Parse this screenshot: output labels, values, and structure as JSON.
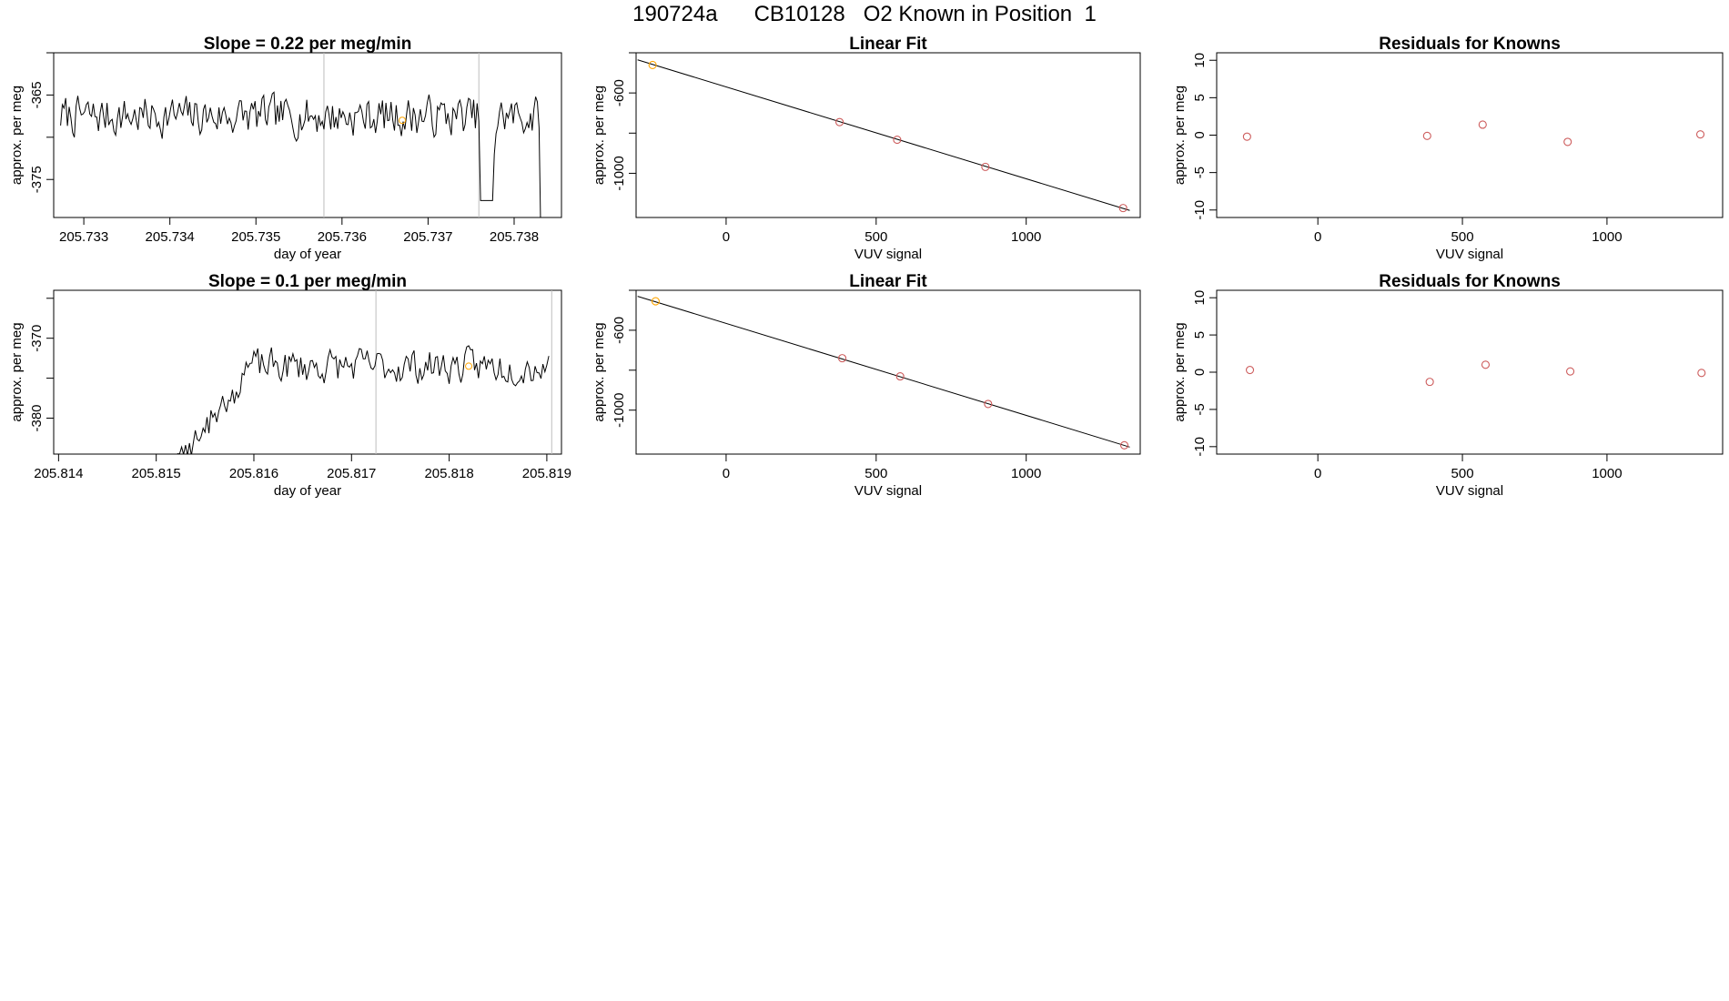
{
  "title": {
    "run": "190724a",
    "cylinder": "CB10128",
    "description": "O2 Known in Position  1"
  },
  "colors": {
    "trace": "#000000",
    "point": "#cd5c5c",
    "highlight": "#ffa500",
    "marker_line": "#bebebe"
  },
  "chart_data": [
    {
      "type": "line",
      "title": "Slope =  0.22  per meg/min",
      "xlabel": "day of year",
      "ylabel": "approx. per meg",
      "xlim": [
        205.73265,
        205.73855
      ],
      "ylim": [
        -379.5,
        -360
      ],
      "xticks": [
        205.733,
        205.734,
        205.735,
        205.736,
        205.737,
        205.738
      ],
      "xtick_labels": [
        "205.733",
        "205.734",
        "205.735",
        "205.736",
        "205.737",
        "205.738"
      ],
      "yticks": [
        -375,
        -370,
        -365,
        -360
      ],
      "ytick_labels": [
        "-375",
        "",
        "-365",
        ""
      ],
      "vlines": [
        205.73579,
        205.73759
      ],
      "highlight_point": {
        "x": 205.7367,
        "y": -368.0
      },
      "series_start": 205.73273,
      "series_end": 205.73836,
      "step": 2e-05,
      "y_mean": -367.5,
      "y_amp": 2.5,
      "seed": 7,
      "dip": {
        "from": 205.73761,
        "to": 205.73776,
        "value": -377.5
      },
      "end_drop": {
        "from": 205.73831,
        "value": -382
      }
    },
    {
      "type": "scatter",
      "title": "Linear Fit",
      "xlabel": "VUV signal",
      "ylabel": "approx. per meg",
      "xlim": [
        -300,
        1380
      ],
      "ylim": [
        -1220,
        -400
      ],
      "xticks": [
        0,
        500,
        1000
      ],
      "xtick_labels": [
        "0",
        "500",
        "1000"
      ],
      "yticks": [
        -1000,
        -800,
        -600,
        -400
      ],
      "ytick_labels": [
        "-1000",
        "",
        "-600",
        ""
      ],
      "fit_line": {
        "x1": -295,
        "y1": -435,
        "x2": 1345,
        "y2": -1185
      },
      "x": [
        -245,
        378,
        570,
        864,
        1323
      ],
      "y": [
        -461,
        -745,
        -833,
        -968,
        -1173
      ],
      "point_colors": [
        "highlight",
        "point",
        "point",
        "point",
        "point"
      ]
    },
    {
      "type": "scatter",
      "title": "Residuals for Knowns",
      "xlabel": "VUV signal",
      "ylabel": "approx. per meg",
      "xlim": [
        -350,
        1400
      ],
      "ylim": [
        -11,
        11
      ],
      "xticks": [
        0,
        500,
        1000
      ],
      "xtick_labels": [
        "0",
        "500",
        "1000"
      ],
      "yticks": [
        -10,
        -5,
        0,
        5,
        10
      ],
      "ytick_labels": [
        "-10",
        "-5",
        "0",
        "5",
        "10"
      ],
      "x": [
        -245,
        378,
        570,
        864,
        1323
      ],
      "y": [
        -0.2,
        -0.1,
        1.4,
        -0.9,
        0.1
      ],
      "point_colors": [
        "point",
        "point",
        "point",
        "point",
        "point"
      ]
    },
    {
      "type": "line",
      "title": "Slope =  0.1  per meg/min",
      "xlabel": "day of year",
      "ylabel": "approx. per meg",
      "xlim": [
        205.81395,
        205.81915
      ],
      "ylim": [
        -384.5,
        -364
      ],
      "xticks": [
        205.814,
        205.815,
        205.816,
        205.817,
        205.818,
        205.819
      ],
      "xtick_labels": [
        "205.814",
        "205.815",
        "205.816",
        "205.817",
        "205.818",
        "205.819"
      ],
      "yticks": [
        -380,
        -375,
        -370,
        -365
      ],
      "ytick_labels": [
        "-380",
        "",
        "-370",
        ""
      ],
      "vlines": [
        205.81725,
        205.81905
      ],
      "highlight_point": {
        "x": 205.8182,
        "y": -373.5
      },
      "series_start": 205.81518,
      "series_end": 205.81903,
      "step": 2e-05,
      "y_mean": -373.5,
      "y_amp": 2.3,
      "seed": 23,
      "ramp": {
        "from": 205.81518,
        "to": 205.81585,
        "start_value": -386,
        "end_value": -376
      }
    },
    {
      "type": "scatter",
      "title": "Linear Fit",
      "xlabel": "VUV signal",
      "ylabel": "approx. per meg",
      "xlim": [
        -300,
        1380
      ],
      "ylim": [
        -1220,
        -400
      ],
      "xticks": [
        0,
        500,
        1000
      ],
      "xtick_labels": [
        "0",
        "500",
        "1000"
      ],
      "yticks": [
        -1000,
        -800,
        -600,
        -400
      ],
      "ytick_labels": [
        "-1000",
        "",
        "-600",
        ""
      ],
      "fit_line": {
        "x1": -295,
        "y1": -430,
        "x2": 1345,
        "y2": -1185
      },
      "x": [
        -235,
        387,
        580,
        873,
        1327
      ],
      "y": [
        -455,
        -740,
        -831,
        -969,
        -1176
      ],
      "point_colors": [
        "highlight",
        "point",
        "point",
        "point",
        "point"
      ]
    },
    {
      "type": "scatter",
      "title": "Residuals for Knowns",
      "xlabel": "VUV signal",
      "ylabel": "approx. per meg",
      "xlim": [
        -350,
        1400
      ],
      "ylim": [
        -11,
        11
      ],
      "xticks": [
        0,
        500,
        1000
      ],
      "xtick_labels": [
        "0",
        "500",
        "1000"
      ],
      "yticks": [
        -10,
        -5,
        0,
        5,
        10
      ],
      "ytick_labels": [
        "-10",
        "-5",
        "0",
        "5",
        "10"
      ],
      "x": [
        -235,
        387,
        580,
        873,
        1327
      ],
      "y": [
        0.3,
        -1.3,
        1.0,
        0.1,
        -0.1
      ],
      "point_colors": [
        "point",
        "point",
        "point",
        "point",
        "point"
      ]
    }
  ]
}
